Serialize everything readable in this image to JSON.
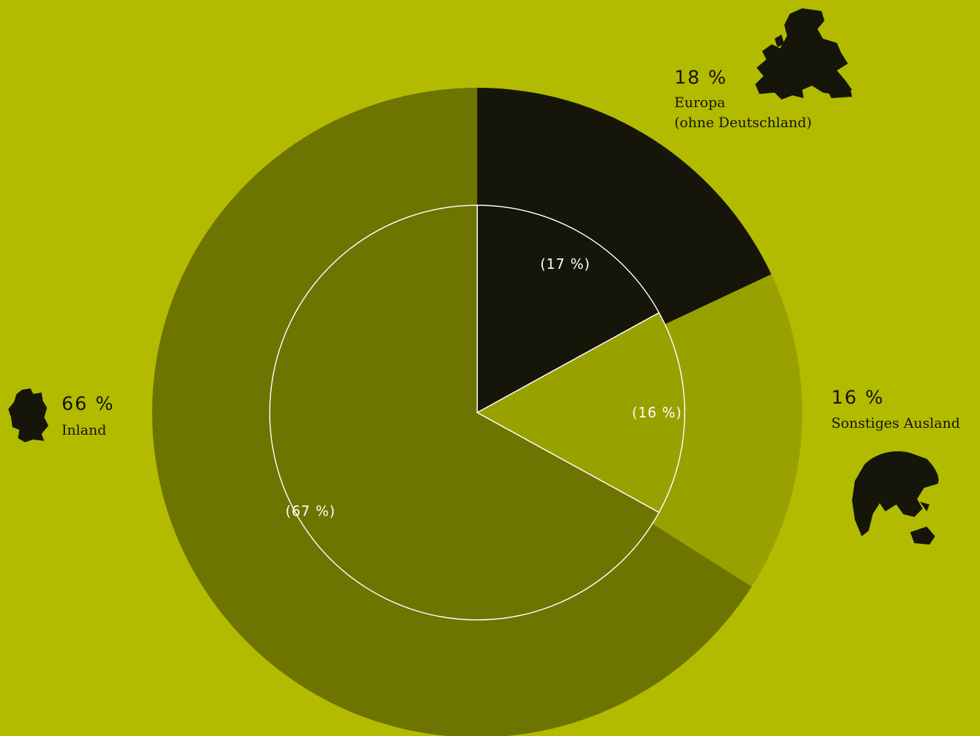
{
  "colors": {
    "background": "#b2bb00",
    "inland": "#6e7400",
    "europa": "#15150a",
    "sonstiges": "#99a100",
    "inner_line": "#ffffff"
  },
  "chart_data": {
    "type": "pie",
    "variant": "nested-ring",
    "categories": [
      "Europa\n(ohne Deutschland)",
      "Sonstiges Ausland",
      "Inland"
    ],
    "series": [
      {
        "values": [
          18,
          16,
          66
        ],
        "labels": [
          "18 %",
          "16 %",
          "66 %"
        ]
      },
      {
        "values": [
          17,
          16,
          67
        ],
        "labels": [
          "(17 %)",
          "(16 %)",
          "(67 %)"
        ]
      }
    ],
    "icons": [
      "europe-map-icon",
      "globe-icon",
      "germany-map-icon"
    ]
  },
  "labels": {
    "europa": {
      "pct": "18 %",
      "line1": "Europa",
      "line2": "(ohne Deutschland)"
    },
    "sonstiges": {
      "pct": "16 %",
      "line1": "Sonstiges Ausland"
    },
    "inland": {
      "pct": "66 %",
      "line1": "Inland"
    }
  }
}
